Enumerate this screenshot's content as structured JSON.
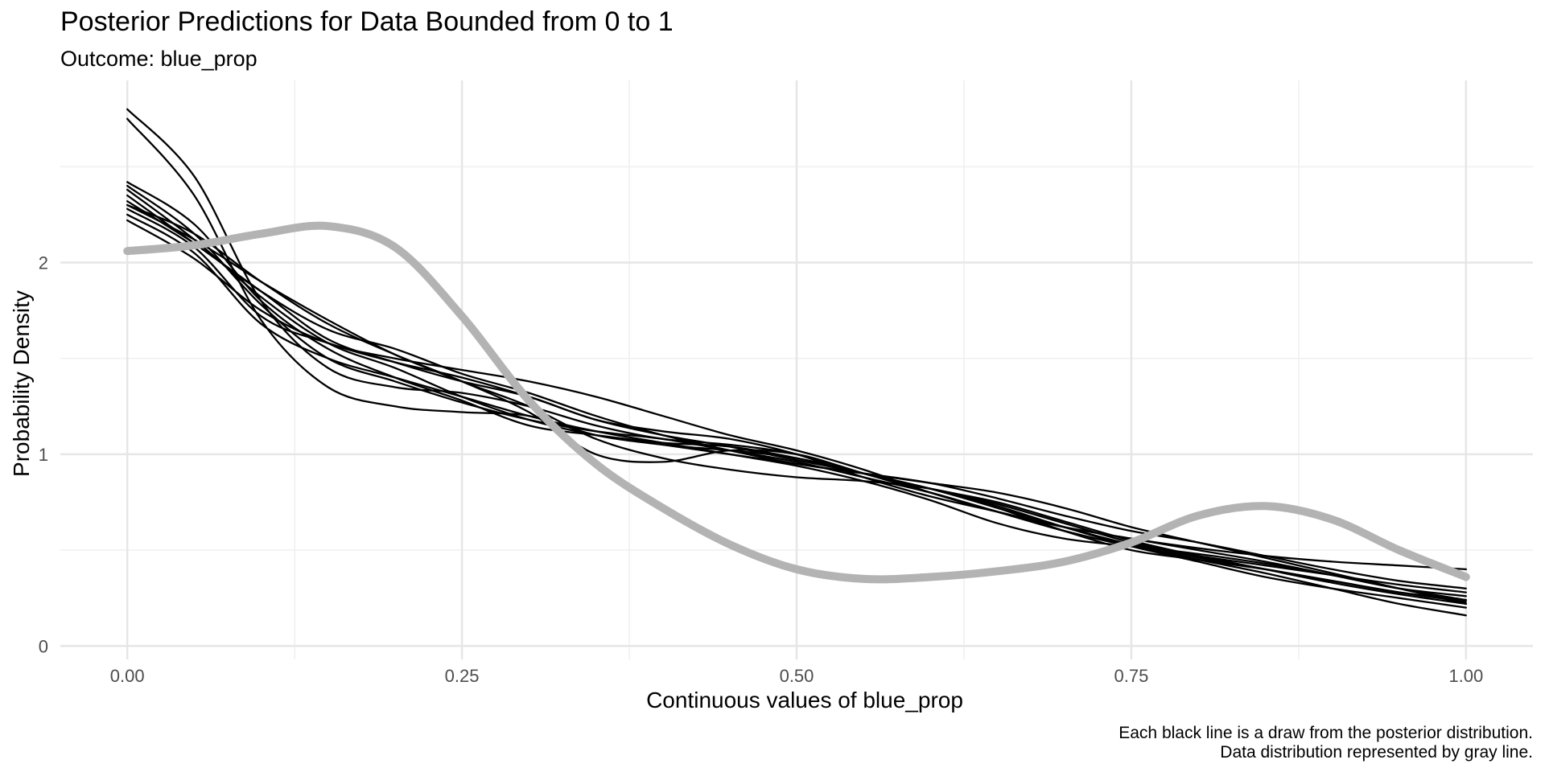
{
  "chart_data": {
    "type": "line",
    "title": "Posterior Predictions for Data Bounded from 0 to 1",
    "subtitle": "Outcome: blue_prop",
    "xlabel": "Continuous values of blue_prop",
    "ylabel": "Probability Density",
    "caption": [
      "Each black line is a draw from the posterior distribution.",
      "Data distribution represented by gray line."
    ],
    "xlim": [
      -0.05,
      1.05
    ],
    "ylim": [
      -0.07,
      2.95
    ],
    "x_ticks": [
      0,
      0.25,
      0.5,
      0.75,
      1
    ],
    "x_tick_labels": [
      "0.00",
      "0.25",
      "0.50",
      "0.75",
      "1.00"
    ],
    "y_ticks": [
      0,
      1,
      2
    ],
    "y_tick_labels": [
      "0",
      "1",
      "2"
    ],
    "grid": true,
    "legend": "none",
    "colors": {
      "draws": "#000000",
      "observed": "#b3b3b3",
      "grid_major": "#e6e6e6",
      "grid_minor": "#f0f0f0"
    },
    "x": [
      0,
      0.05,
      0.1,
      0.15,
      0.2,
      0.25,
      0.3,
      0.35,
      0.4,
      0.45,
      0.5,
      0.55,
      0.6,
      0.65,
      0.7,
      0.75,
      0.8,
      0.85,
      0.9,
      0.95,
      1
    ],
    "series": [
      {
        "color": "#b3b3b3",
        "values": [
          2.06,
          2.09,
          2.15,
          2.19,
          2.08,
          1.72,
          1.28,
          0.95,
          0.72,
          0.53,
          0.4,
          0.35,
          0.36,
          0.39,
          0.44,
          0.54,
          0.68,
          0.73,
          0.66,
          0.5,
          0.36
        ]
      },
      {
        "color": "#000000",
        "values": [
          2.8,
          2.45,
          1.8,
          1.45,
          1.35,
          1.32,
          1.25,
          1.15,
          1.08,
          1.05,
          1.0,
          0.9,
          0.82,
          0.75,
          0.65,
          0.55,
          0.47,
          0.4,
          0.33,
          0.27,
          0.22
        ]
      },
      {
        "color": "#000000",
        "values": [
          2.75,
          2.35,
          1.7,
          1.35,
          1.25,
          1.22,
          1.2,
          1.1,
          1.05,
          1.02,
          0.98,
          0.9,
          0.82,
          0.73,
          0.62,
          0.52,
          0.44,
          0.36,
          0.3,
          0.25,
          0.2
        ]
      },
      {
        "color": "#000000",
        "values": [
          2.42,
          2.2,
          1.8,
          1.55,
          1.4,
          1.28,
          1.15,
          1.1,
          1.06,
          1.04,
          0.98,
          0.9,
          0.82,
          0.72,
          0.62,
          0.53,
          0.47,
          0.42,
          0.37,
          0.32,
          0.28
        ]
      },
      {
        "color": "#000000",
        "values": [
          2.4,
          2.15,
          1.78,
          1.5,
          1.38,
          1.27,
          1.18,
          1.12,
          1.08,
          1.02,
          0.96,
          0.88,
          0.8,
          0.7,
          0.6,
          0.52,
          0.46,
          0.4,
          0.34,
          0.28,
          0.23
        ]
      },
      {
        "color": "#000000",
        "values": [
          2.38,
          2.12,
          1.82,
          1.58,
          1.45,
          1.3,
          1.18,
          1.1,
          1.05,
          1.0,
          0.95,
          0.9,
          0.85,
          0.77,
          0.68,
          0.6,
          0.54,
          0.47,
          0.4,
          0.34,
          0.3
        ]
      },
      {
        "color": "#000000",
        "values": [
          2.32,
          2.1,
          1.85,
          1.65,
          1.55,
          1.42,
          1.32,
          1.2,
          1.1,
          1.02,
          0.95,
          0.9,
          0.85,
          0.8,
          0.72,
          0.62,
          0.54,
          0.46,
          0.38,
          0.3,
          0.22
        ]
      },
      {
        "color": "#000000",
        "values": [
          2.3,
          2.12,
          1.9,
          1.7,
          1.52,
          1.38,
          1.25,
          1.08,
          0.98,
          0.92,
          0.88,
          0.86,
          0.82,
          0.74,
          0.64,
          0.54,
          0.47,
          0.4,
          0.34,
          0.28,
          0.24
        ]
      },
      {
        "color": "#000000",
        "values": [
          2.28,
          2.08,
          1.72,
          1.58,
          1.48,
          1.4,
          1.3,
          1.18,
          1.1,
          1.04,
          0.97,
          0.9,
          0.82,
          0.72,
          0.6,
          0.5,
          0.45,
          0.4,
          0.34,
          0.28,
          0.24
        ]
      },
      {
        "color": "#000000",
        "values": [
          2.25,
          2.05,
          1.68,
          1.5,
          1.4,
          1.3,
          1.2,
          1.12,
          1.06,
          1.0,
          0.94,
          0.86,
          0.76,
          0.64,
          0.56,
          0.52,
          0.48,
          0.43,
          0.37,
          0.3,
          0.24
        ]
      },
      {
        "color": "#000000",
        "values": [
          2.22,
          2.02,
          1.75,
          1.58,
          1.5,
          1.44,
          1.38,
          1.3,
          1.2,
          1.1,
          1.02,
          0.92,
          0.8,
          0.7,
          0.62,
          0.56,
          0.51,
          0.47,
          0.44,
          0.42,
          0.4
        ]
      },
      {
        "color": "#000000",
        "values": [
          2.3,
          2.15,
          1.9,
          1.68,
          1.52,
          1.38,
          1.22,
          1.0,
          0.96,
          1.02,
          1.0,
          0.9,
          0.8,
          0.7,
          0.6,
          0.52,
          0.45,
          0.38,
          0.3,
          0.22,
          0.16
        ]
      },
      {
        "color": "#000000",
        "values": [
          2.35,
          2.1,
          1.85,
          1.6,
          1.48,
          1.38,
          1.3,
          1.18,
          1.12,
          1.08,
          1.0,
          0.88,
          0.78,
          0.7,
          0.62,
          0.56,
          0.5,
          0.44,
          0.37,
          0.3,
          0.26
        ]
      }
    ]
  }
}
